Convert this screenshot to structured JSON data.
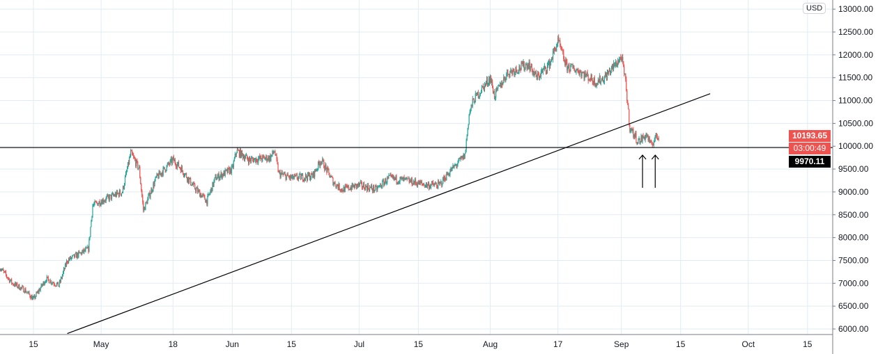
{
  "chart_data": {
    "type": "candlestick",
    "currency": "USD",
    "y_ticks": [
      6000,
      6500,
      7000,
      7500,
      8000,
      8500,
      9000,
      9500,
      10000,
      10500,
      11000,
      11500,
      12000,
      12500,
      13000
    ],
    "ylim": [
      5900,
      13150
    ],
    "x_ticks": [
      "15",
      "May",
      "18",
      "Jun",
      "15",
      "Jul",
      "15",
      "Aug",
      "17",
      "Sep",
      "15",
      "Oct",
      "15"
    ],
    "x_tick_dates": [
      "2020-04-15",
      "2020-05-01",
      "2020-05-18",
      "2020-06-01",
      "2020-06-15",
      "2020-07-01",
      "2020-07-15",
      "2020-08-01",
      "2020-08-17",
      "2020-09-01",
      "2020-09-15",
      "2020-10-01",
      "2020-10-15"
    ],
    "grid": true,
    "approx_close_path": [
      [
        "2020-04-07",
        7350
      ],
      [
        "2020-04-10",
        7000
      ],
      [
        "2020-04-13",
        6850
      ],
      [
        "2020-04-15",
        6650
      ],
      [
        "2020-04-18",
        7100
      ],
      [
        "2020-04-21",
        6950
      ],
      [
        "2020-04-23",
        7500
      ],
      [
        "2020-04-28",
        7750
      ],
      [
        "2020-04-29",
        8700
      ],
      [
        "2020-05-01",
        8800
      ],
      [
        "2020-05-06",
        9000
      ],
      [
        "2020-05-08",
        9850
      ],
      [
        "2020-05-10",
        9500
      ],
      [
        "2020-05-11",
        8600
      ],
      [
        "2020-05-14",
        9300
      ],
      [
        "2020-05-17",
        9600
      ],
      [
        "2020-05-18",
        9700
      ],
      [
        "2020-05-20",
        9500
      ],
      [
        "2020-05-23",
        9100
      ],
      [
        "2020-05-26",
        8800
      ],
      [
        "2020-05-28",
        9300
      ],
      [
        "2020-06-01",
        9500
      ],
      [
        "2020-06-02",
        9900
      ],
      [
        "2020-06-05",
        9700
      ],
      [
        "2020-06-10",
        9750
      ],
      [
        "2020-06-11",
        9900
      ],
      [
        "2020-06-12",
        9400
      ],
      [
        "2020-06-15",
        9300
      ],
      [
        "2020-06-20",
        9350
      ],
      [
        "2020-06-22",
        9700
      ],
      [
        "2020-06-25",
        9200
      ],
      [
        "2020-06-27",
        9050
      ],
      [
        "2020-07-01",
        9150
      ],
      [
        "2020-07-05",
        9050
      ],
      [
        "2020-07-08",
        9300
      ],
      [
        "2020-07-12",
        9250
      ],
      [
        "2020-07-17",
        9150
      ],
      [
        "2020-07-20",
        9150
      ],
      [
        "2020-07-22",
        9400
      ],
      [
        "2020-07-24",
        9600
      ],
      [
        "2020-07-26",
        9800
      ],
      [
        "2020-07-27",
        10700
      ],
      [
        "2020-07-28",
        11000
      ],
      [
        "2020-08-01",
        11500
      ],
      [
        "2020-08-02",
        11100
      ],
      [
        "2020-08-05",
        11600
      ],
      [
        "2020-08-10",
        11800
      ],
      [
        "2020-08-12",
        11500
      ],
      [
        "2020-08-15",
        11800
      ],
      [
        "2020-08-17",
        12300
      ],
      [
        "2020-08-19",
        11750
      ],
      [
        "2020-08-22",
        11650
      ],
      [
        "2020-08-26",
        11400
      ],
      [
        "2020-08-28",
        11500
      ],
      [
        "2020-09-01",
        11950
      ],
      [
        "2020-09-02",
        11400
      ],
      [
        "2020-09-03",
        10400
      ],
      [
        "2020-09-05",
        10100
      ],
      [
        "2020-09-07",
        10250
      ],
      [
        "2020-09-08",
        10000
      ],
      [
        "2020-09-09",
        10200
      ],
      [
        "2020-09-10",
        10193.65
      ]
    ],
    "annotations": {
      "horizontal_line_price": 9970.11,
      "trend_line": [
        [
          "2020-04-23",
          5900
        ],
        [
          "2020-09-22",
          11150
        ]
      ],
      "arrows_up_dates": [
        "2020-09-06",
        "2020-09-09"
      ]
    },
    "last_price": "10193.65",
    "countdown": "03:00:49",
    "line_label": "9970.11",
    "colors": {
      "up": "#26a69a",
      "down": "#ef5350",
      "grid": "#e1ecf2",
      "line": "#000000"
    }
  }
}
